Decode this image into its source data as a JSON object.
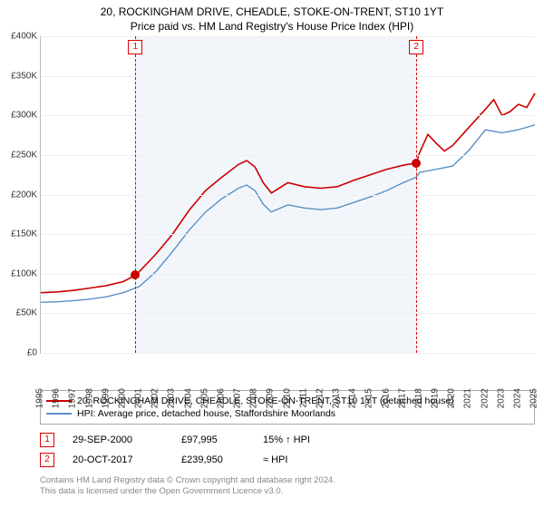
{
  "title": "20, ROCKINGHAM DRIVE, CHEADLE, STOKE-ON-TRENT, ST10 1YT",
  "subtitle": "Price paid vs. HM Land Registry's House Price Index (HPI)",
  "chart": {
    "type": "line",
    "xlim_year": [
      1995,
      2025
    ],
    "ylim": [
      0,
      400000
    ],
    "ytick_step": 50000,
    "yticks": [
      "£0",
      "£50K",
      "£100K",
      "£150K",
      "£200K",
      "£250K",
      "£300K",
      "£350K",
      "£400K"
    ],
    "xticks_years": [
      1995,
      1996,
      1997,
      1998,
      1999,
      2000,
      2001,
      2002,
      2003,
      2004,
      2005,
      2006,
      2007,
      2008,
      2009,
      2010,
      2011,
      2012,
      2013,
      2014,
      2015,
      2016,
      2017,
      2018,
      2019,
      2020,
      2021,
      2022,
      2023,
      2024,
      2025
    ],
    "background_color": "#ffffff",
    "shaded_color": "#f2f6fb",
    "shaded_range_year": [
      2000.75,
      2017.8
    ],
    "grid_color": "#eeeeee",
    "series": [
      {
        "id": "property",
        "color": "#cc0000",
        "width": 1.6,
        "points_yearvalue": [
          [
            1995,
            76000
          ],
          [
            1996,
            77000
          ],
          [
            1997,
            79000
          ],
          [
            1998,
            82000
          ],
          [
            1999,
            85000
          ],
          [
            2000,
            90000
          ],
          [
            2000.75,
            97995
          ],
          [
            2001,
            103000
          ],
          [
            2002,
            125000
          ],
          [
            2003,
            150000
          ],
          [
            2004,
            180000
          ],
          [
            2005,
            205000
          ],
          [
            2006,
            222000
          ],
          [
            2007,
            238000
          ],
          [
            2007.5,
            243000
          ],
          [
            2008,
            235000
          ],
          [
            2008.5,
            215000
          ],
          [
            2009,
            202000
          ],
          [
            2010,
            215000
          ],
          [
            2011,
            210000
          ],
          [
            2012,
            208000
          ],
          [
            2013,
            210000
          ],
          [
            2014,
            218000
          ],
          [
            2015,
            225000
          ],
          [
            2016,
            232000
          ],
          [
            2017,
            237000
          ],
          [
            2017.8,
            239950
          ],
          [
            2018,
            253000
          ],
          [
            2018.5,
            276000
          ],
          [
            2019,
            265000
          ],
          [
            2019.5,
            255000
          ],
          [
            2020,
            262000
          ],
          [
            2021,
            285000
          ],
          [
            2022,
            308000
          ],
          [
            2022.5,
            320000
          ],
          [
            2023,
            300000
          ],
          [
            2023.5,
            305000
          ],
          [
            2024,
            314000
          ],
          [
            2024.5,
            310000
          ],
          [
            2025,
            328000
          ]
        ]
      },
      {
        "id": "hpi",
        "color": "#5b8fc7",
        "width": 1.4,
        "points_yearvalue": [
          [
            1995,
            64000
          ],
          [
            1996,
            64500
          ],
          [
            1997,
            66000
          ],
          [
            1998,
            68000
          ],
          [
            1999,
            71000
          ],
          [
            2000,
            76000
          ],
          [
            2001,
            84000
          ],
          [
            2002,
            103000
          ],
          [
            2003,
            128000
          ],
          [
            2004,
            155000
          ],
          [
            2005,
            178000
          ],
          [
            2006,
            195000
          ],
          [
            2007,
            208000
          ],
          [
            2007.5,
            212000
          ],
          [
            2008,
            205000
          ],
          [
            2008.5,
            188000
          ],
          [
            2009,
            178000
          ],
          [
            2010,
            187000
          ],
          [
            2011,
            183000
          ],
          [
            2012,
            181000
          ],
          [
            2013,
            183000
          ],
          [
            2014,
            190000
          ],
          [
            2015,
            197000
          ],
          [
            2016,
            205000
          ],
          [
            2017,
            215000
          ],
          [
            2017.8,
            222000
          ],
          [
            2018,
            228000
          ],
          [
            2019,
            232000
          ],
          [
            2020,
            236000
          ],
          [
            2021,
            256000
          ],
          [
            2022,
            282000
          ],
          [
            2023,
            278000
          ],
          [
            2024,
            282000
          ],
          [
            2025,
            288000
          ]
        ]
      }
    ],
    "markers": [
      {
        "n": "1",
        "year": 2000.75,
        "value": 97995,
        "dot_color": "#cc0000"
      },
      {
        "n": "2",
        "year": 2017.8,
        "value": 239950,
        "dot_color": "#cc0000"
      }
    ]
  },
  "legend": [
    {
      "color": "#cc0000",
      "label": "20, ROCKINGHAM DRIVE, CHEADLE, STOKE-ON-TRENT, ST10 1YT (detached house)"
    },
    {
      "color": "#5b8fc7",
      "label": "HPI: Average price, detached house, Staffordshire Moorlands"
    }
  ],
  "sales": [
    {
      "n": "1",
      "date": "29-SEP-2000",
      "price": "£97,995",
      "hpi": "15% ↑ HPI"
    },
    {
      "n": "2",
      "date": "20-OCT-2017",
      "price": "£239,950",
      "hpi": "≈ HPI"
    }
  ],
  "footer": {
    "line1": "Contains HM Land Registry data © Crown copyright and database right 2024.",
    "line2": "This data is licensed under the Open Government Licence v3.0."
  }
}
